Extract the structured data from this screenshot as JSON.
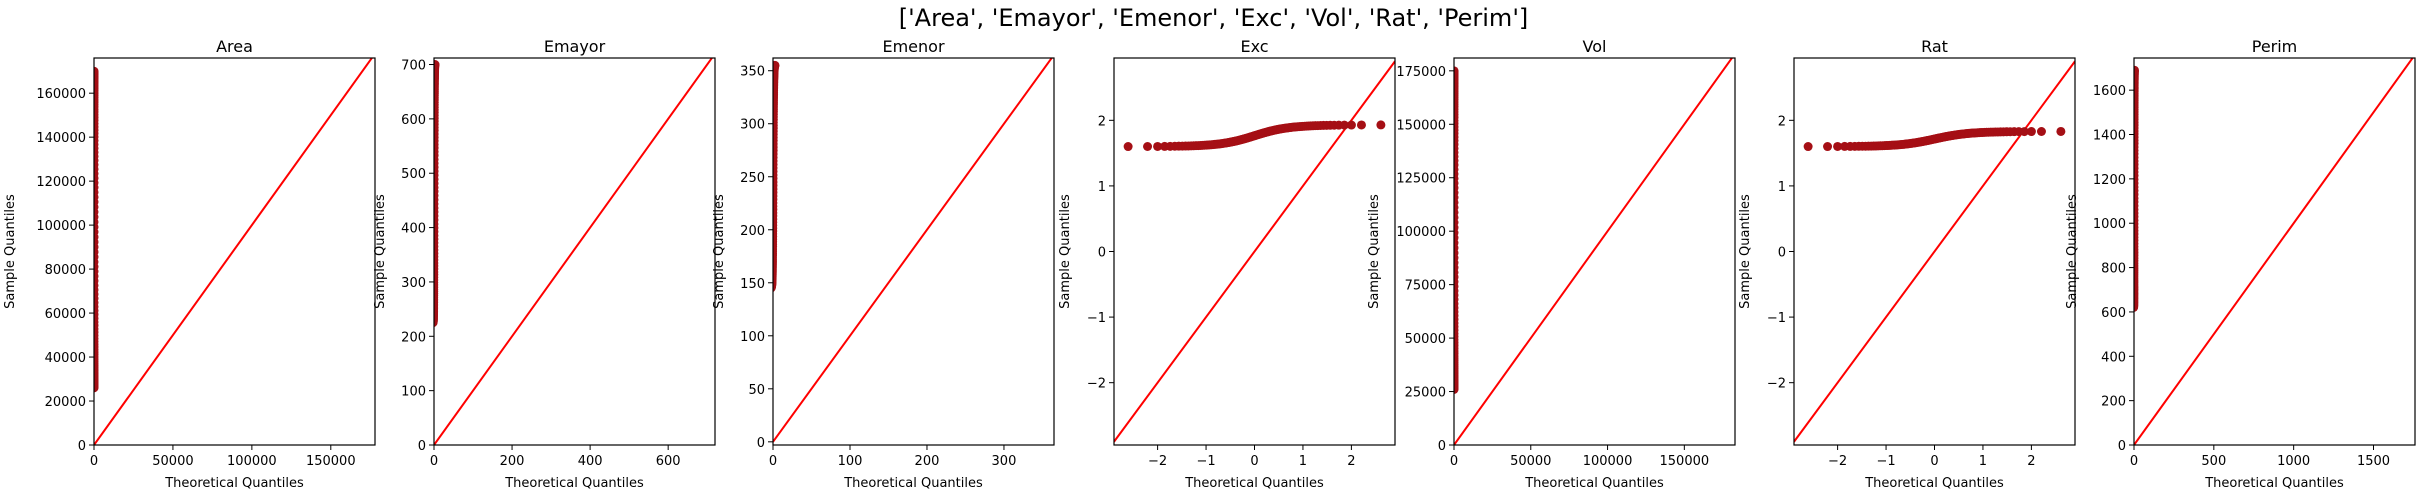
{
  "figure_title": "['Area', 'Emayor', 'Emenor', 'Exc', 'Vol', 'Rat', 'Perim']",
  "colors": {
    "points": "#a50f15",
    "line": "#ff0000",
    "axes": "#000000"
  },
  "chart_data": [
    {
      "type": "scatter",
      "title": "Area",
      "xlabel": "Theoretical Quantiles",
      "ylabel": "Sample Quantiles",
      "xlim": [
        0,
        178000
      ],
      "ylim": [
        0,
        176000
      ],
      "xticks": [
        0,
        50000,
        100000,
        150000
      ],
      "yticks": [
        0,
        20000,
        40000,
        60000,
        80000,
        100000,
        120000,
        140000,
        160000
      ],
      "tick_labels_x": [
        "0",
        "50000",
        "100000",
        "150000"
      ],
      "tick_labels_y": [
        "0",
        "20000",
        "40000",
        "60000",
        "80000",
        "100000",
        "120000",
        "140000",
        "160000"
      ],
      "points": {
        "x_range": [
          -3.0,
          3.0
        ],
        "y_range": [
          26000,
          170000
        ]
      },
      "reference_line": {
        "slope": 1,
        "intercept": 0
      }
    },
    {
      "type": "scatter",
      "title": "Emayor",
      "xlabel": "Theoretical Quantiles",
      "ylabel": "Sample Quantiles",
      "xlim": [
        0,
        720
      ],
      "ylim": [
        0,
        712
      ],
      "xticks": [
        0,
        200,
        400,
        600
      ],
      "yticks": [
        0,
        100,
        200,
        300,
        400,
        500,
        600,
        700
      ],
      "tick_labels_x": [
        "0",
        "200",
        "400",
        "600"
      ],
      "tick_labels_y": [
        "0",
        "100",
        "200",
        "300",
        "400",
        "500",
        "600",
        "700"
      ],
      "points": {
        "x_range": [
          -3.0,
          3.0
        ],
        "y_range": [
          225,
          700
        ]
      },
      "reference_line": {
        "slope": 1,
        "intercept": 0
      }
    },
    {
      "type": "scatter",
      "title": "Emenor",
      "xlabel": "Theoretical Quantiles",
      "ylabel": "Sample Quantiles",
      "xlim": [
        0,
        365
      ],
      "ylim": [
        -3,
        362
      ],
      "xticks": [
        0,
        100,
        200,
        300
      ],
      "yticks": [
        0,
        50,
        100,
        150,
        200,
        250,
        300,
        350
      ],
      "tick_labels_x": [
        "0",
        "100",
        "200",
        "300"
      ],
      "tick_labels_y": [
        "0",
        "50",
        "100",
        "150",
        "200",
        "250",
        "300",
        "350"
      ],
      "points": {
        "x_range": [
          -3.0,
          3.0
        ],
        "y_range": [
          145,
          355
        ]
      },
      "reference_line": {
        "slope": 1,
        "intercept": 0
      }
    },
    {
      "type": "scatter",
      "title": "Exc",
      "xlabel": "Theoretical Quantiles",
      "ylabel": "Sample Quantiles",
      "xlim": [
        -2.9,
        2.9
      ],
      "ylim": [
        -2.95,
        2.95
      ],
      "xticks": [
        -2,
        -1,
        0,
        1,
        2
      ],
      "yticks": [
        -2,
        -1,
        0,
        1,
        2
      ],
      "tick_labels_x": [
        "−2",
        "−1",
        "0",
        "1",
        "2"
      ],
      "tick_labels_y": [
        "−2",
        "−1",
        "0",
        "1",
        "2"
      ],
      "points": {
        "x_range": [
          -2.65,
          2.8
        ],
        "y_range": [
          1.6,
          1.93
        ]
      },
      "reference_line": {
        "slope": 1,
        "intercept": 0
      }
    },
    {
      "type": "scatter",
      "title": "Vol",
      "xlabel": "Theoretical Quantiles",
      "ylabel": "Sample Quantiles",
      "xlim": [
        0,
        183000
      ],
      "ylim": [
        0,
        181000
      ],
      "xticks": [
        0,
        50000,
        100000,
        150000
      ],
      "yticks": [
        0,
        25000,
        50000,
        75000,
        100000,
        125000,
        150000,
        175000
      ],
      "tick_labels_x": [
        "0",
        "50000",
        "100000",
        "150000"
      ],
      "tick_labels_y": [
        "0",
        "25000",
        "50000",
        "75000",
        "100000",
        "125000",
        "150000",
        "175000"
      ],
      "points": {
        "x_range": [
          -3.0,
          3.0
        ],
        "y_range": [
          26000,
          175000
        ]
      },
      "reference_line": {
        "slope": 1,
        "intercept": 0
      }
    },
    {
      "type": "scatter",
      "title": "Rat",
      "xlabel": "Theoretical Quantiles",
      "ylabel": "Sample Quantiles",
      "xlim": [
        -2.9,
        2.9
      ],
      "ylim": [
        -2.95,
        2.95
      ],
      "xticks": [
        -2,
        -1,
        0,
        1,
        2
      ],
      "yticks": [
        -2,
        -1,
        0,
        1,
        2
      ],
      "tick_labels_x": [
        "−2",
        "−1",
        "0",
        "1",
        "2"
      ],
      "tick_labels_y": [
        "−2",
        "−1",
        "0",
        "1",
        "2"
      ],
      "points": {
        "x_range": [
          -2.65,
          2.8
        ],
        "y_range": [
          1.6,
          1.83
        ]
      },
      "reference_line": {
        "slope": 1,
        "intercept": 0
      }
    },
    {
      "type": "scatter",
      "title": "Perim",
      "xlabel": "Theoretical Quantiles",
      "ylabel": "Sample Quantiles",
      "xlim": [
        0,
        1760
      ],
      "ylim": [
        0,
        1745
      ],
      "xticks": [
        0,
        500,
        1000,
        1500
      ],
      "yticks": [
        0,
        200,
        400,
        600,
        800,
        1000,
        1200,
        1400,
        1600
      ],
      "tick_labels_x": [
        "0",
        "500",
        "1000",
        "1500"
      ],
      "tick_labels_y": [
        "0",
        "200",
        "400",
        "600",
        "800",
        "1000",
        "1200",
        "1400",
        "1600"
      ],
      "points": {
        "x_range": [
          -3.0,
          3.0
        ],
        "y_range": [
          620,
          1690
        ]
      },
      "reference_line": {
        "slope": 1,
        "intercept": 0
      }
    }
  ]
}
